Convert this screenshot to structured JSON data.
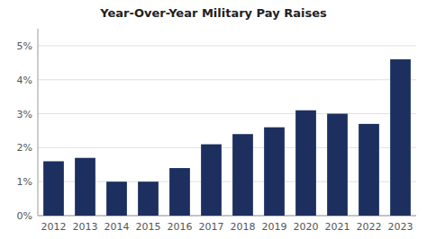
{
  "chart_data": {
    "type": "bar",
    "title": "Year-Over-Year Military Pay Raises",
    "categories": [
      "2012",
      "2013",
      "2014",
      "2015",
      "2016",
      "2017",
      "2018",
      "2019",
      "2020",
      "2021",
      "2022",
      "2023"
    ],
    "values": [
      1.6,
      1.7,
      1.0,
      1.0,
      1.4,
      2.1,
      2.4,
      2.6,
      3.1,
      3.0,
      2.7,
      4.6
    ],
    "color": "#1c2f5e",
    "ylim": [
      0,
      5.5
    ],
    "yticks": [
      {
        "value": 0,
        "label": "0%"
      },
      {
        "value": 1,
        "label": "1%"
      },
      {
        "value": 2,
        "label": "2%"
      },
      {
        "value": 3,
        "label": "3%"
      },
      {
        "value": 4,
        "label": "4%"
      },
      {
        "value": 5,
        "label": "5%"
      }
    ],
    "grid": true
  }
}
